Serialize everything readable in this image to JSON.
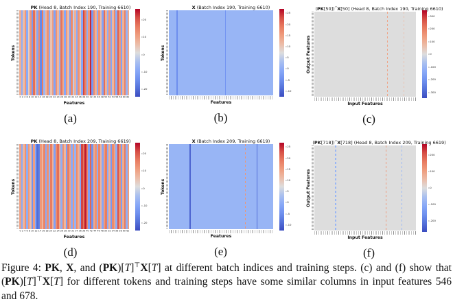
{
  "theme": {
    "coolwarm_anchors": [
      [
        0.0,
        "#3B4CC0"
      ],
      [
        0.125,
        "#5C7CE0"
      ],
      [
        0.25,
        "#7C9FF9"
      ],
      [
        0.375,
        "#9DB9F4"
      ],
      [
        0.5,
        "#DDDDDD"
      ],
      [
        0.625,
        "#F0B49A"
      ],
      [
        0.75,
        "#EE8D6C"
      ],
      [
        0.875,
        "#DE604D"
      ],
      [
        1.0,
        "#B40426"
      ]
    ],
    "page_background": "#ffffff"
  },
  "chart_data": [
    {
      "id": "a",
      "type": "heatmap",
      "caption": "(a)",
      "title_segments": [
        {
          "text": "PK",
          "style": "bold"
        },
        {
          "text": " (Head 8, Batch Index 190, Training 6610)",
          "style": "plain"
        }
      ],
      "xlabel": "Features",
      "ylabel": "Tokens",
      "x_tick_labels": [
        "0",
        "2",
        "4",
        "6",
        "8",
        "10",
        "12",
        "14",
        "16",
        "18",
        "20",
        "22",
        "24",
        "26",
        "28",
        "30",
        "32",
        "34",
        "36",
        "38",
        "40",
        "42",
        "44",
        "46",
        "48",
        "50",
        "52",
        "54",
        "56",
        "58",
        "60",
        "62"
      ],
      "vmin": -24.5,
      "vmax": 26.5,
      "colorbar_ticks": [
        20,
        10,
        0,
        -10,
        -20
      ],
      "column_values": [
        8,
        -8,
        6,
        12,
        -9,
        3,
        12,
        -13,
        18,
        8,
        -10,
        14,
        -16,
        16,
        -6,
        7,
        13,
        -9,
        5,
        11,
        -11,
        13,
        7,
        -7,
        17,
        9,
        -10,
        12,
        6,
        -12,
        14,
        -2,
        8,
        -9,
        13,
        5,
        -10,
        22,
        15,
        -8,
        12,
        24,
        -13,
        14,
        8,
        -9,
        13,
        6,
        -11,
        18,
        8,
        -8,
        12,
        -10,
        7,
        14,
        -9,
        20,
        12,
        -11,
        8,
        15,
        -7,
        9
      ]
    },
    {
      "id": "b",
      "type": "heatmap",
      "caption": "(b)",
      "title_segments": [
        {
          "text": "X",
          "style": "bold"
        },
        {
          "text": " (Batch Index 190, Training 6610)",
          "style": "plain"
        }
      ],
      "xlabel": "Features",
      "ylabel": "Tokens",
      "vmin": -12.5,
      "vmax": 27,
      "colorbar_ticks": [
        25,
        20,
        15,
        10,
        5,
        0,
        -5,
        -10
      ],
      "base_value": 1.5,
      "vlines": [
        {
          "x": 0.075,
          "value": -5,
          "dashed": false
        },
        {
          "x": 0.54,
          "value": -4,
          "dashed": false
        }
      ]
    },
    {
      "id": "c",
      "type": "heatmap",
      "caption": "(c)",
      "title_segments": [
        {
          "text": "(",
          "style": "plain"
        },
        {
          "text": "PK",
          "style": "bold"
        },
        {
          "text": "[50])",
          "style": "plain"
        },
        {
          "text": "⊤",
          "style": "sup"
        },
        {
          "text": "X",
          "style": "bold"
        },
        {
          "text": "[50] (Head 8, Batch Index 190, Training 6610)",
          "style": "plain"
        }
      ],
      "xlabel": "Input Features",
      "ylabel": "Output Features",
      "vmin": -345,
      "vmax": 345,
      "colorbar_ticks": [
        300,
        200,
        100,
        0,
        -100,
        -200,
        -300
      ],
      "base_value": 0,
      "vlines": [
        {
          "x": 0.715,
          "value": 120,
          "dashed": true
        },
        {
          "x": 0.88,
          "value": 55,
          "dashed": true
        }
      ]
    },
    {
      "id": "d",
      "type": "heatmap",
      "caption": "(d)",
      "title_segments": [
        {
          "text": "PK",
          "style": "bold"
        },
        {
          "text": " (Head 8, Batch Index 209, Training 6619)",
          "style": "plain"
        }
      ],
      "xlabel": "Features",
      "ylabel": "Tokens",
      "x_tick_labels": [
        "0",
        "2",
        "4",
        "6",
        "8",
        "10",
        "12",
        "14",
        "16",
        "18",
        "20",
        "22",
        "24",
        "26",
        "28",
        "30",
        "32",
        "34",
        "36",
        "38",
        "40",
        "42",
        "44",
        "46",
        "48",
        "50",
        "52",
        "54",
        "56",
        "58",
        "60",
        "62"
      ],
      "vmin": -24.5,
      "vmax": 26.5,
      "colorbar_ticks": [
        20,
        10,
        0,
        -10,
        -20
      ],
      "column_values": [
        10,
        -9,
        7,
        13,
        -8,
        12,
        6,
        -14,
        11,
        -10,
        -20,
        -17,
        12,
        7,
        15,
        -9,
        13,
        -7,
        16,
        8,
        -11,
        14,
        18,
        9,
        -8,
        13,
        7,
        -12,
        16,
        10,
        -9,
        12,
        -7,
        14,
        8,
        -10,
        22,
        17,
        25,
        14,
        -12,
        19,
        -14,
        9,
        13,
        -8,
        15,
        7,
        -10,
        12,
        16,
        -9,
        8,
        -13,
        14,
        10,
        -8,
        21,
        13,
        -12,
        9,
        16,
        -8,
        11
      ]
    },
    {
      "id": "e",
      "type": "heatmap",
      "caption": "(e)",
      "title_segments": [
        {
          "text": "X",
          "style": "bold"
        },
        {
          "text": " (Batch Index 209, Training 6619)",
          "style": "plain"
        }
      ],
      "xlabel": "Features",
      "ylabel": "Tokens",
      "vmin": -12.5,
      "vmax": 27,
      "colorbar_ticks": [
        25,
        20,
        15,
        10,
        5,
        0,
        -5,
        -10
      ],
      "base_value": 1.5,
      "vlines": [
        {
          "x": 0.2,
          "value": -10,
          "dashed": false
        },
        {
          "x": 0.73,
          "value": 16,
          "dashed": true
        },
        {
          "x": 0.84,
          "value": -9,
          "dashed": false
        }
      ]
    },
    {
      "id": "f",
      "type": "heatmap",
      "caption": "(f)",
      "title_segments": [
        {
          "text": "(",
          "style": "plain"
        },
        {
          "text": "PK",
          "style": "bold"
        },
        {
          "text": "[718])",
          "style": "plain"
        },
        {
          "text": "⊤",
          "style": "sup"
        },
        {
          "text": "X",
          "style": "bold"
        },
        {
          "text": "[718] (Head 8, Batch Index 209, Training 6619)",
          "style": "plain"
        }
      ],
      "xlabel": "Input Features",
      "ylabel": "Output Features",
      "vmin": -265,
      "vmax": 265,
      "colorbar_ticks": [
        200,
        100,
        0,
        -100,
        -200
      ],
      "base_value": 0,
      "vlines": [
        {
          "x": 0.205,
          "value": -75,
          "dashed": true
        },
        {
          "x": 0.7,
          "value": 105,
          "dashed": true
        },
        {
          "x": 0.86,
          "value": -65,
          "dashed": true
        }
      ]
    }
  ],
  "figure_caption": {
    "segments": [
      {
        "text": "Figure 4: ",
        "style": "plain"
      },
      {
        "text": "PK",
        "style": "bold"
      },
      {
        "text": ", ",
        "style": "plain"
      },
      {
        "text": "X",
        "style": "bold"
      },
      {
        "text": ", and (",
        "style": "plain"
      },
      {
        "text": "PK",
        "style": "bold"
      },
      {
        "text": ")[",
        "style": "plain"
      },
      {
        "text": "T",
        "style": "italic"
      },
      {
        "text": "]",
        "style": "plain"
      },
      {
        "text": "⊤",
        "style": "sup"
      },
      {
        "text": "X",
        "style": "bold"
      },
      {
        "text": "[",
        "style": "plain"
      },
      {
        "text": "T",
        "style": "italic"
      },
      {
        "text": "] at different batch indices and training steps. (c) and (f) show that (",
        "style": "plain"
      },
      {
        "text": "PK",
        "style": "bold"
      },
      {
        "text": ")[",
        "style": "plain"
      },
      {
        "text": "T",
        "style": "italic"
      },
      {
        "text": "]",
        "style": "plain"
      },
      {
        "text": "⊤",
        "style": "sup"
      },
      {
        "text": "X",
        "style": "bold"
      },
      {
        "text": "[",
        "style": "plain"
      },
      {
        "text": "T",
        "style": "italic"
      },
      {
        "text": "] for different tokens and training steps have some similar columns in input features 546 and 678.",
        "style": "plain"
      }
    ]
  }
}
